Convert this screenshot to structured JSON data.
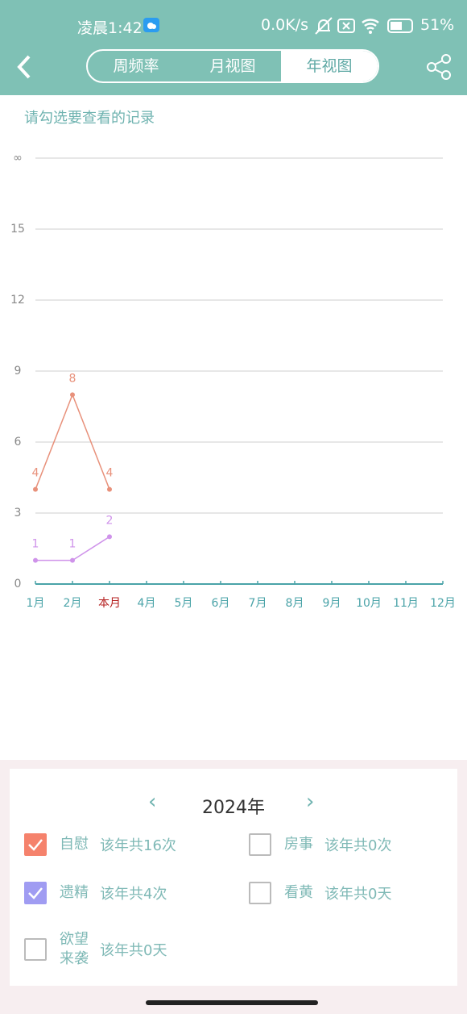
{
  "status_bar": {
    "time": "凌晨1:42",
    "network": "0.0K/s",
    "battery": "51%"
  },
  "tabs": [
    "周频率",
    "月视图",
    "年视图"
  ],
  "selected_tab": 2,
  "hint": "请勾选要查看的记录",
  "chart_data": {
    "type": "line",
    "categories": [
      "1月",
      "2月",
      "本月",
      "4月",
      "5月",
      "6月",
      "7月",
      "8月",
      "9月",
      "10月",
      "11月",
      "12月"
    ],
    "highlight_category": 2,
    "series": [
      {
        "name": "自慰",
        "color": "#e8917b",
        "values": [
          4,
          8,
          4,
          null,
          null,
          null,
          null,
          null,
          null,
          null,
          null,
          null
        ]
      },
      {
        "name": "遗精",
        "color": "#cf93ea",
        "values": [
          1,
          1,
          2,
          null,
          null,
          null,
          null,
          null,
          null,
          null,
          null,
          null
        ]
      }
    ],
    "ylim": [
      0,
      18
    ],
    "yticks": [
      0,
      3,
      6,
      9,
      12,
      15,
      {
        "value": 18,
        "label": "∞"
      }
    ],
    "grid": true
  },
  "footer": {
    "year": "2024年",
    "records": [
      {
        "name": "自慰",
        "summary": "该年共16次",
        "checked": true,
        "color": "#f5826c"
      },
      {
        "name": "房事",
        "summary": "该年共0次",
        "checked": false,
        "color": "#bbbbbb"
      },
      {
        "name": "遗精",
        "summary": "该年共4次",
        "checked": true,
        "color": "#a09cf2"
      },
      {
        "name": "看黄",
        "summary": "该年共0天",
        "checked": false,
        "color": "#bbbbbb"
      },
      {
        "name": "欲望来袭",
        "summary": "该年共0天",
        "checked": false,
        "color": "#bbbbbb"
      }
    ]
  }
}
